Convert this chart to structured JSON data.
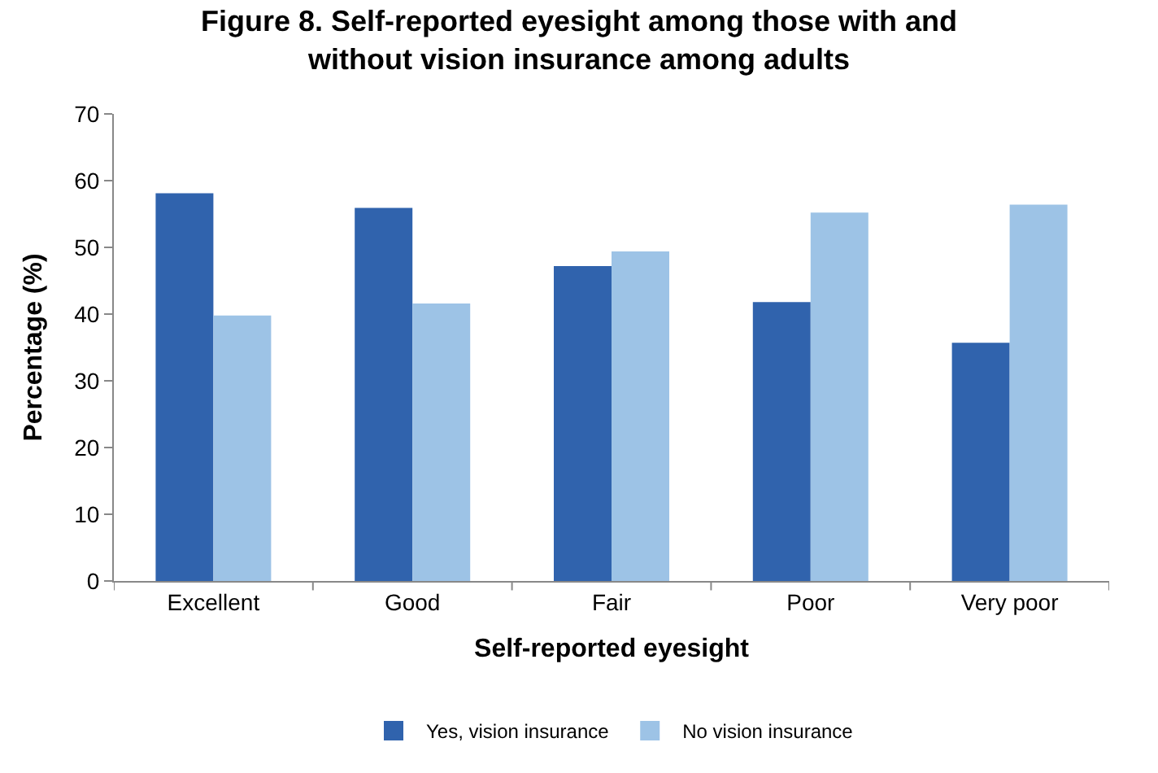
{
  "chart_data": {
    "type": "bar",
    "title": "Figure 8. Self-reported eyesight among those with and\nwithout vision insurance among adults",
    "xlabel": "Self-reported eyesight",
    "ylabel": "Percentage (%)",
    "categories": [
      "Excellent",
      "Good",
      "Fair",
      "Poor",
      "Very poor"
    ],
    "series": [
      {
        "name": "Yes, vision insurance",
        "color": "#3063ad",
        "values": [
          58.1,
          55.9,
          47.2,
          41.8,
          35.7
        ]
      },
      {
        "name": "No vision insurance",
        "color": "#9dc3e6",
        "values": [
          39.8,
          41.6,
          49.4,
          55.2,
          56.4
        ]
      }
    ],
    "ylim": [
      0,
      70
    ],
    "yticks": [
      0,
      10,
      20,
      30,
      40,
      50,
      60,
      70
    ],
    "legend": "bottom"
  }
}
